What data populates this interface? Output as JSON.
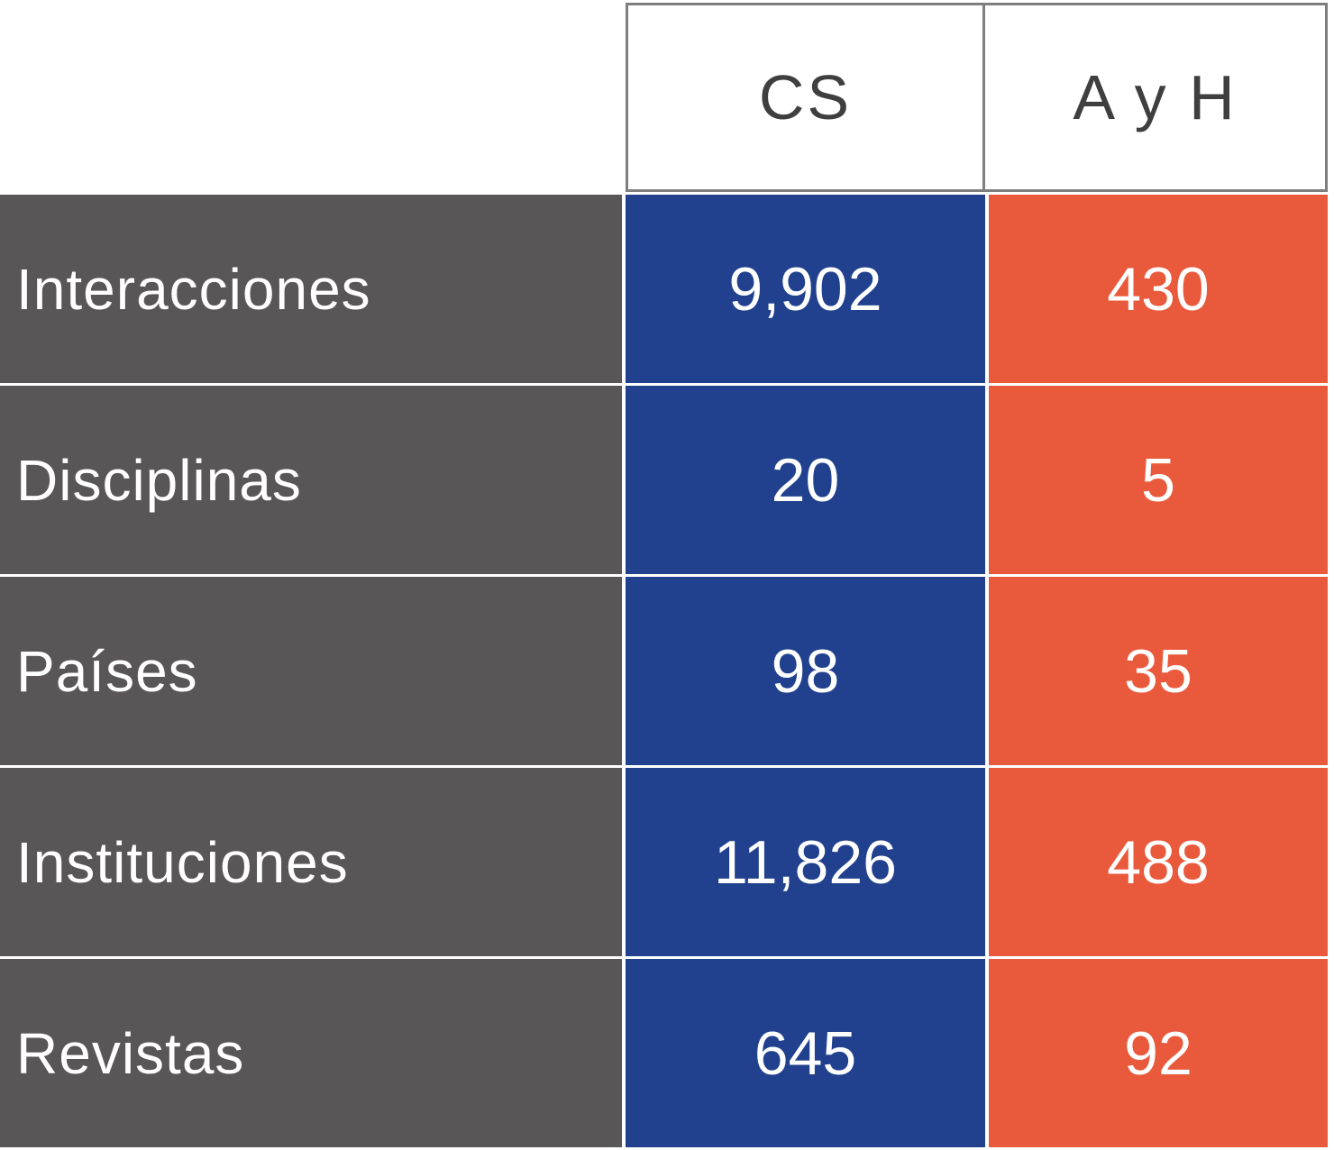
{
  "table": {
    "columns": [
      {
        "key": "cs",
        "label": "CS"
      },
      {
        "key": "ayh",
        "label": "A y H"
      }
    ],
    "rows": [
      {
        "label": "Interacciones",
        "cs": "9,902",
        "ayh": "430"
      },
      {
        "label": "Disciplinas",
        "cs": "20",
        "ayh": "5"
      },
      {
        "label": "Países",
        "cs": "98",
        "ayh": "35"
      },
      {
        "label": "Instituciones",
        "cs": "11,826",
        "ayh": "488"
      },
      {
        "label": "Revistas",
        "cs": "645",
        "ayh": "92"
      }
    ],
    "colors": {
      "label_bg": "#585656",
      "cs_bg": "#21418E",
      "ayh_bg": "#E95A3D",
      "header_border": "#7e7e7e",
      "header_text": "#3f3f3f",
      "cell_text": "#ffffff"
    }
  },
  "chart_data": {
    "type": "table",
    "title": "",
    "columns": [
      "",
      "CS",
      "A y H"
    ],
    "rows": [
      [
        "Interacciones",
        9902,
        430
      ],
      [
        "Disciplinas",
        20,
        5
      ],
      [
        "Países",
        98,
        35
      ],
      [
        "Instituciones",
        11826,
        488
      ],
      [
        "Revistas",
        645,
        92
      ]
    ],
    "notes": "Comparison table: CS column blue (#21418E), A y H column orange (#E95A3D), row labels on dark gray (#585656)."
  }
}
